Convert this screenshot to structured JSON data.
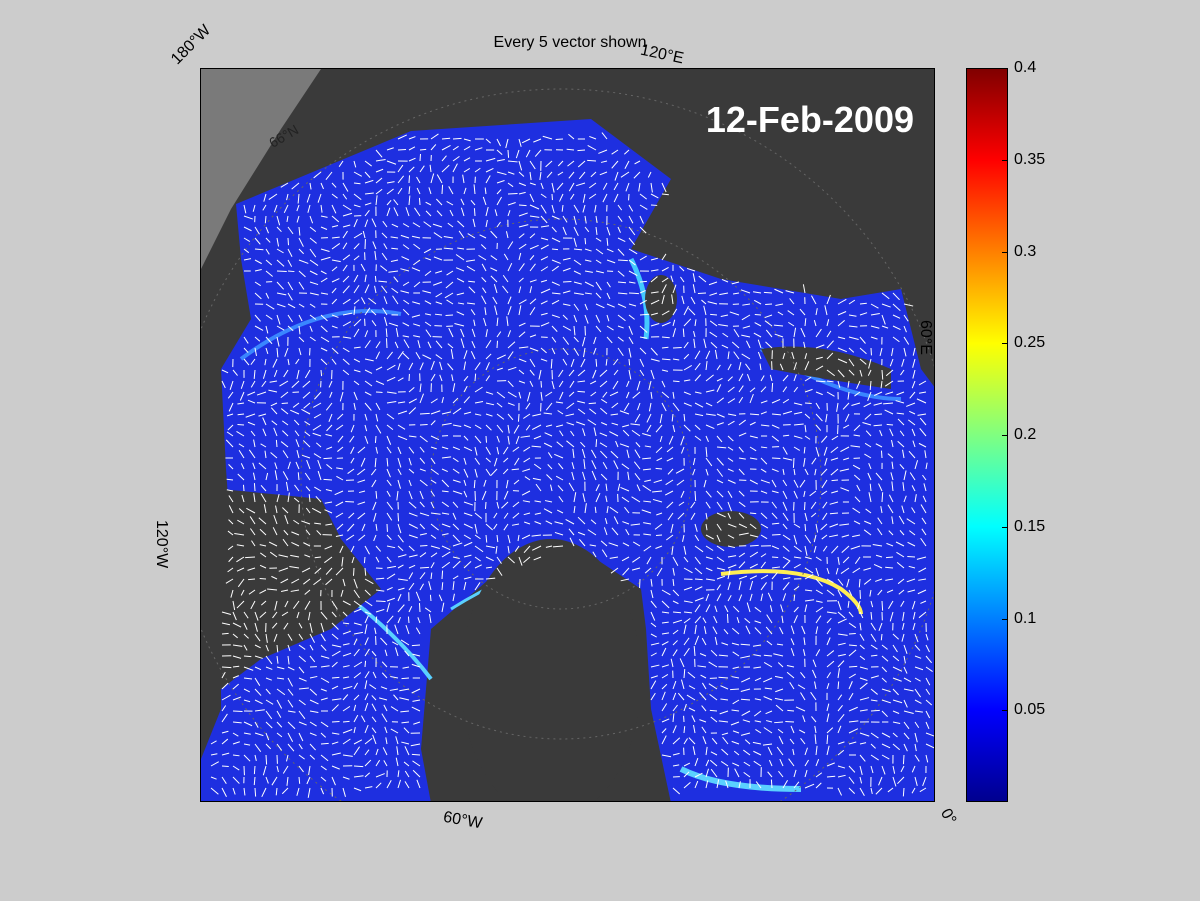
{
  "title": "Every 5 vector shown",
  "date_stamp": "12-Feb-2009",
  "edge_labels": {
    "lon_180w": "180°W",
    "lon_120e": "120°E",
    "lon_60e": "60°E",
    "lon_120w": "120°W",
    "lon_60w": "60°W",
    "lon_0": "0°"
  },
  "interior_labels": {
    "lat_66n": "66°N"
  },
  "colorbar": {
    "ticks": [
      "0.05",
      "0.1",
      "0.15",
      "0.2",
      "0.25",
      "0.3",
      "0.35",
      "0.4"
    ],
    "tick_values": [
      0.05,
      0.1,
      0.15,
      0.2,
      0.25,
      0.3,
      0.35,
      0.4
    ],
    "range": [
      0.0,
      0.4
    ],
    "colormap": "jet"
  },
  "colors": {
    "figure_bg": "#cccccc",
    "land": "#3a3a3a",
    "ice_field": "#1e2fe0",
    "vectors": "#ffffff"
  }
}
